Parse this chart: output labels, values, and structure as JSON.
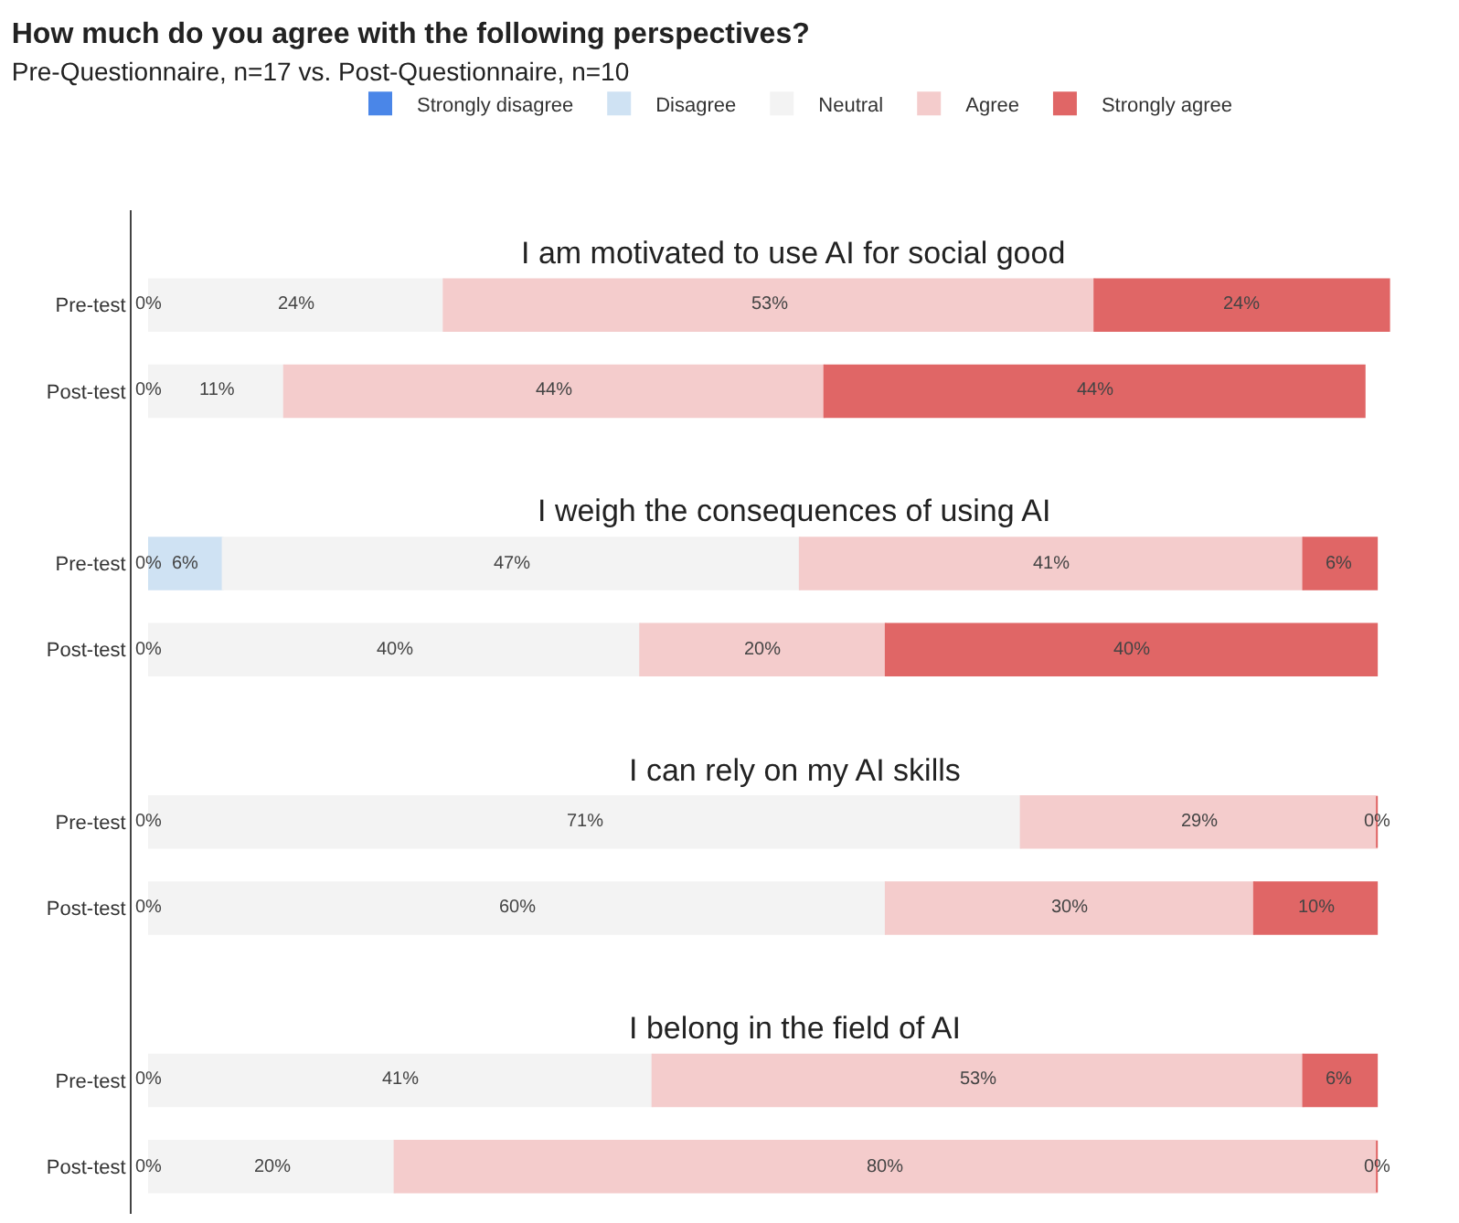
{
  "chart_data": {
    "type": "bar",
    "orientation": "horizontal",
    "stacked": true,
    "title": "How much do you agree with the following perspectives?",
    "subtitle": "Pre-Questionnaire, n=17 vs. Post-Questionnaire, n=10",
    "categories": [
      "Pre-test",
      "Post-test",
      "Pre-test",
      "Post-test",
      "Pre-test",
      "Post-test",
      "Pre-test",
      "Post-test"
    ],
    "series": [
      {
        "name": "Strongly disagree",
        "color": "#4a86e8",
        "values": [
          0,
          0,
          0,
          0,
          0,
          0,
          0,
          0
        ],
        "value_labels": [
          "0%",
          "0%",
          "0%",
          "0%",
          "0%",
          "0%",
          "0%",
          "0%"
        ]
      },
      {
        "name": "Disagree",
        "color": "#cfe2f3",
        "values": [
          0,
          0,
          6,
          0,
          0,
          0,
          0,
          0
        ],
        "value_labels": [
          null,
          null,
          "6%",
          null,
          null,
          null,
          null,
          null
        ]
      },
      {
        "name": "Neutral",
        "color": "#f3f3f3",
        "values": [
          24,
          11,
          47,
          40,
          71,
          60,
          41,
          20
        ],
        "value_labels": [
          "24%",
          "11%",
          "47%",
          "40%",
          "71%",
          "60%",
          "41%",
          "20%"
        ]
      },
      {
        "name": "Agree",
        "color": "#f4cccc",
        "values": [
          53,
          44,
          41,
          20,
          29,
          30,
          53,
          80
        ],
        "value_labels": [
          "53%",
          "44%",
          "41%",
          "20%",
          "29%",
          "30%",
          "53%",
          "80%"
        ]
      },
      {
        "name": "Strongly agree",
        "color": "#e06666",
        "values": [
          24,
          44,
          6,
          40,
          0,
          10,
          6,
          0
        ],
        "value_labels": [
          "24%",
          "44%",
          "6%",
          "40%",
          "0%",
          "10%",
          "6%",
          "0%"
        ]
      }
    ],
    "annotations": [
      "I am motivated to use AI for social good",
      "I weigh the consequences of using AI",
      "I can rely on my AI skills",
      "I belong in the field of AI"
    ],
    "legend": "top",
    "tick_labels": "y",
    "grid": false
  }
}
